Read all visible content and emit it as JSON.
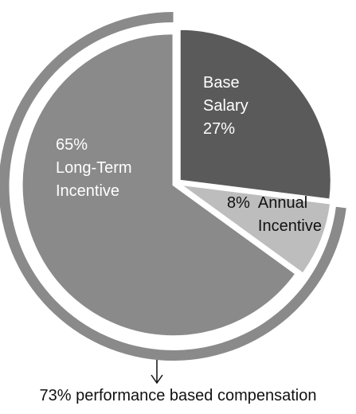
{
  "chart_data": {
    "type": "pie",
    "categories": [
      "Base Salary",
      "Annual Incentive",
      "Long-Term Incentive"
    ],
    "values": [
      27,
      8,
      65
    ],
    "value_labels": [
      "27%",
      "8%",
      "65%"
    ],
    "colors": [
      "#5a5a5a",
      "#bdbdbd",
      "#8a8a8a"
    ],
    "ring_color": "#8a8a8a",
    "annotation": "73% performance based compensation"
  }
}
